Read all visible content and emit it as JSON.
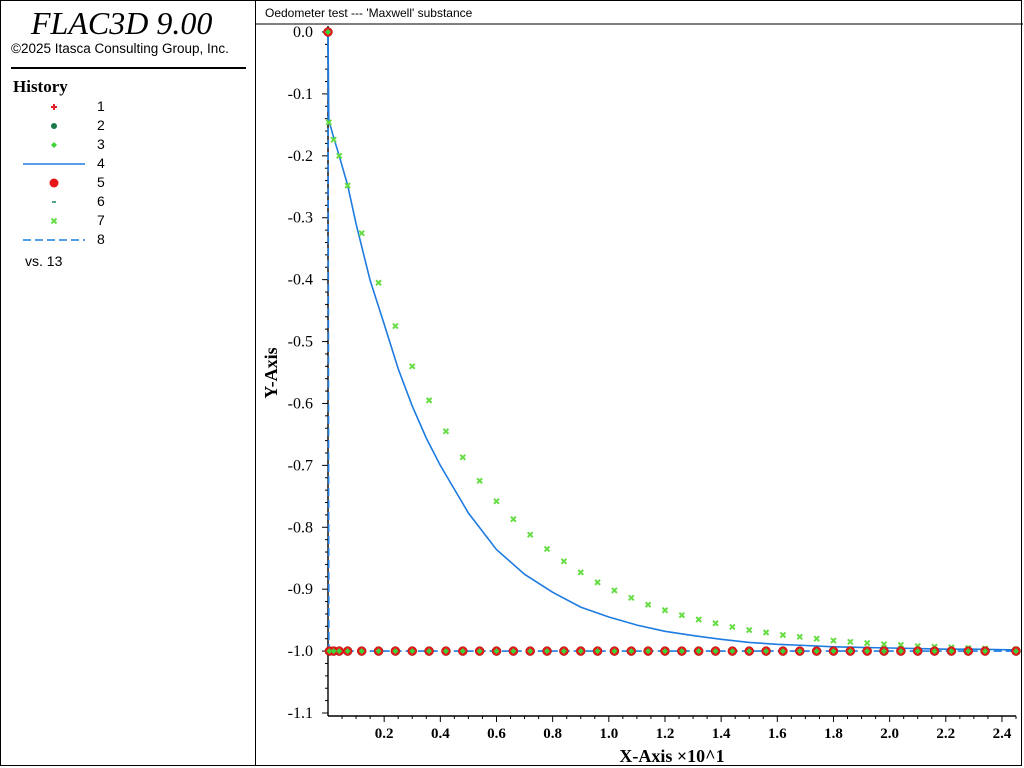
{
  "brand": {
    "title": "FLAC3D 9.00",
    "copyright": "©2025 Itasca Consulting Group, Inc."
  },
  "legend": {
    "heading": "History",
    "items": [
      {
        "label": "1",
        "symbol": "plus",
        "color": "#e8202a"
      },
      {
        "label": "2",
        "symbol": "hexagon",
        "color": "#1a7a4a"
      },
      {
        "label": "3",
        "symbol": "diamond",
        "color": "#3cd23c"
      },
      {
        "label": "4",
        "symbol": "line",
        "color": "#1e7be0"
      },
      {
        "label": "5",
        "symbol": "circle",
        "color": "#e81818"
      },
      {
        "label": "6",
        "symbol": "dash",
        "color": "#2a8a6a"
      },
      {
        "label": "7",
        "symbol": "cross",
        "color": "#66dd44"
      },
      {
        "label": "8",
        "symbol": "dashed-line",
        "color": "#1e7be0"
      }
    ],
    "vs_label": "vs. 13"
  },
  "chart_data": {
    "type": "line",
    "title": "Oedometer test --- 'Maxwell' substance",
    "xlabel": "X-Axis ×10^1",
    "ylabel": "Y-Axis",
    "xlim": [
      0,
      2.45
    ],
    "ylim": [
      -1.1,
      0.0
    ],
    "x_ticks": [
      0.2,
      0.4,
      0.6,
      0.8,
      1.0,
      1.2,
      1.4,
      1.6,
      1.8,
      2.0,
      2.2,
      2.4
    ],
    "x_tick_labels": [
      "0.2",
      "0.4",
      "0.6",
      "0.8",
      "1.0",
      "1.2",
      "1.4",
      "1.6",
      "1.8",
      "2.0",
      "2.2",
      "2.4"
    ],
    "y_ticks": [
      0.0,
      -0.1,
      -0.2,
      -0.3,
      -0.4,
      -0.5,
      -0.6,
      -0.7,
      -0.8,
      -0.9,
      -1.0,
      -1.1
    ],
    "y_tick_labels": [
      "0.0",
      "-0.1",
      "-0.2",
      "-0.3",
      "-0.4",
      "-0.5",
      "-0.6",
      "-0.7",
      "-0.8",
      "-0.9",
      "-1.0",
      "-1.1"
    ],
    "grid": false,
    "legend_position": "left panel",
    "series": [
      {
        "label": "4",
        "color": "#1e7be0",
        "style": "solid",
        "x": [
          0.0,
          0.003,
          0.01,
          0.02,
          0.04,
          0.07,
          0.1,
          0.15,
          0.2,
          0.25,
          0.3,
          0.35,
          0.4,
          0.5,
          0.6,
          0.7,
          0.8,
          0.9,
          1.0,
          1.1,
          1.2,
          1.3,
          1.4,
          1.5,
          1.6,
          1.7,
          1.8,
          1.9,
          2.0,
          2.1,
          2.2,
          2.3,
          2.45
        ],
        "y": [
          0.0,
          -0.143,
          -0.154,
          -0.17,
          -0.2,
          -0.248,
          -0.31,
          -0.401,
          -0.472,
          -0.544,
          -0.604,
          -0.656,
          -0.7,
          -0.777,
          -0.836,
          -0.876,
          -0.905,
          -0.929,
          -0.945,
          -0.958,
          -0.968,
          -0.975,
          -0.981,
          -0.986,
          -0.989,
          -0.991,
          -0.993,
          -0.994,
          -0.995,
          -0.996,
          -0.997,
          -0.997,
          -0.998
        ]
      },
      {
        "label": "8",
        "color": "#1e7be0",
        "style": "dashed",
        "x": [
          0.0,
          0.003,
          2.45
        ],
        "y": [
          0.0,
          -1.0,
          -1.0
        ]
      },
      {
        "label": "7",
        "color": "#66dd44",
        "style": "markers-cross",
        "x": [
          0.003,
          0.02,
          0.04,
          0.07,
          0.12,
          0.18,
          0.24,
          0.3,
          0.36,
          0.42,
          0.48,
          0.54,
          0.6,
          0.66,
          0.72,
          0.78,
          0.84,
          0.9,
          0.96,
          1.02,
          1.08,
          1.14,
          1.2,
          1.26,
          1.32,
          1.38,
          1.44,
          1.5,
          1.56,
          1.62,
          1.68,
          1.74,
          1.8,
          1.86,
          1.92,
          1.98,
          2.04,
          2.1,
          2.16,
          2.22,
          2.28,
          2.34,
          2.45
        ],
        "y": [
          -0.146,
          -0.174,
          -0.2,
          -0.248,
          -0.325,
          -0.405,
          -0.475,
          -0.54,
          -0.595,
          -0.645,
          -0.687,
          -0.725,
          -0.758,
          -0.787,
          -0.812,
          -0.835,
          -0.855,
          -0.873,
          -0.889,
          -0.902,
          -0.914,
          -0.925,
          -0.934,
          -0.942,
          -0.949,
          -0.955,
          -0.961,
          -0.966,
          -0.97,
          -0.974,
          -0.977,
          -0.98,
          -0.983,
          -0.985,
          -0.987,
          -0.989,
          -0.99,
          -0.992,
          -0.993,
          -0.994,
          -0.995,
          -0.996,
          -0.997
        ]
      },
      {
        "label": "5",
        "color": "#e81818",
        "style": "markers-circle",
        "x": [
          0.0,
          0.005,
          0.02,
          0.04,
          0.07,
          0.12,
          0.18,
          0.24,
          0.3,
          0.36,
          0.42,
          0.48,
          0.54,
          0.6,
          0.66,
          0.72,
          0.78,
          0.84,
          0.9,
          0.96,
          1.02,
          1.08,
          1.14,
          1.2,
          1.26,
          1.32,
          1.38,
          1.44,
          1.5,
          1.56,
          1.62,
          1.68,
          1.74,
          1.8,
          1.86,
          1.92,
          1.98,
          2.04,
          2.1,
          2.16,
          2.22,
          2.28,
          2.34,
          2.45
        ],
        "y": [
          0.0,
          -1.0,
          -1.0,
          -1.0,
          -1.0,
          -1.0,
          -1.0,
          -1.0,
          -1.0,
          -1.0,
          -1.0,
          -1.0,
          -1.0,
          -1.0,
          -1.0,
          -1.0,
          -1.0,
          -1.0,
          -1.0,
          -1.0,
          -1.0,
          -1.0,
          -1.0,
          -1.0,
          -1.0,
          -1.0,
          -1.0,
          -1.0,
          -1.0,
          -1.0,
          -1.0,
          -1.0,
          -1.0,
          -1.0,
          -1.0,
          -1.0,
          -1.0,
          -1.0,
          -1.0,
          -1.0,
          -1.0,
          -1.0,
          -1.0,
          -1.0
        ]
      },
      {
        "label": "3",
        "color": "#3cd23c",
        "style": "markers-diamond",
        "x": [
          0.0,
          0.005,
          0.02,
          0.04,
          0.07,
          0.12,
          0.18,
          0.24,
          0.3,
          0.36,
          0.42,
          0.48,
          0.54,
          0.6,
          0.66,
          0.72,
          0.78,
          0.84,
          0.9,
          0.96,
          1.02,
          1.08,
          1.14,
          1.2,
          1.26,
          1.32,
          1.38,
          1.44,
          1.5,
          1.56,
          1.62,
          1.68,
          1.74,
          1.8,
          1.86,
          1.92,
          1.98,
          2.04,
          2.1,
          2.16,
          2.22,
          2.28,
          2.34,
          2.45
        ],
        "y": [
          0.0,
          -1.0,
          -1.0,
          -1.0,
          -1.0,
          -1.0,
          -1.0,
          -1.0,
          -1.0,
          -1.0,
          -1.0,
          -1.0,
          -1.0,
          -1.0,
          -1.0,
          -1.0,
          -1.0,
          -1.0,
          -1.0,
          -1.0,
          -1.0,
          -1.0,
          -1.0,
          -1.0,
          -1.0,
          -1.0,
          -1.0,
          -1.0,
          -1.0,
          -1.0,
          -1.0,
          -1.0,
          -1.0,
          -1.0,
          -1.0,
          -1.0,
          -1.0,
          -1.0,
          -1.0,
          -1.0,
          -1.0,
          -1.0,
          -1.0,
          -1.0
        ]
      }
    ]
  }
}
